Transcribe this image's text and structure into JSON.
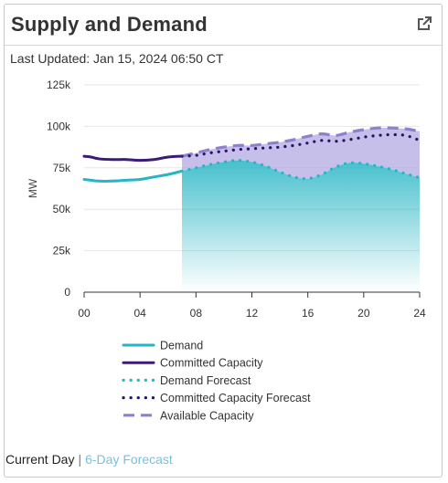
{
  "header": {
    "title": "Supply and Demand",
    "external_link_icon": "external-link-icon"
  },
  "last_updated": "Last Updated: Jan 15, 2024 06:50 CT",
  "footer": {
    "current_label": "Current Day",
    "separator": "|",
    "forecast_label": "6-Day Forecast"
  },
  "chart_data": {
    "type": "line",
    "ylabel": "MW",
    "xlabel": "",
    "xlim": [
      0,
      24
    ],
    "ylim": [
      0,
      125000
    ],
    "x_ticks": [
      "00",
      "04",
      "08",
      "12",
      "16",
      "20",
      "24"
    ],
    "y_ticks": [
      "0",
      "25k",
      "50k",
      "75k",
      "100k",
      "125k"
    ],
    "grid": true,
    "legend_position": "bottom",
    "series": [
      {
        "name": "Demand",
        "style": "solid",
        "color": "#26b5c4",
        "x": [
          0,
          0.5,
          1,
          2,
          3,
          4,
          5,
          6,
          7
        ],
        "y": [
          68000,
          67500,
          67000,
          67000,
          67500,
          68000,
          69500,
          71000,
          73000
        ]
      },
      {
        "name": "Committed Capacity",
        "style": "solid",
        "color": "#3d1a78",
        "x": [
          0,
          0.5,
          1,
          2,
          3,
          4,
          5,
          6,
          7
        ],
        "y": [
          82000,
          81500,
          80500,
          80000,
          80000,
          79500,
          80000,
          81500,
          82000
        ]
      },
      {
        "name": "Demand Forecast",
        "style": "dotted",
        "color": "#26b5c4",
        "x": [
          7,
          8,
          9,
          10,
          11,
          12,
          13,
          14,
          15,
          16,
          17,
          18,
          19,
          20,
          21,
          22,
          23,
          24
        ],
        "y": [
          73000,
          75000,
          77000,
          78500,
          79500,
          78500,
          76000,
          72500,
          69500,
          68500,
          71000,
          75500,
          78000,
          77500,
          76000,
          74000,
          71500,
          69000
        ]
      },
      {
        "name": "Committed Capacity Forecast",
        "style": "dotted",
        "color": "#2a1363",
        "x": [
          7,
          8,
          9,
          10,
          11,
          12,
          13,
          14,
          15,
          16,
          17,
          18,
          19,
          20,
          21,
          22,
          23,
          24
        ],
        "y": [
          82000,
          82500,
          84000,
          85000,
          86000,
          86500,
          87000,
          87500,
          88500,
          90000,
          91500,
          91000,
          92000,
          93500,
          94500,
          95000,
          94500,
          91500
        ]
      },
      {
        "name": "Available Capacity",
        "style": "dashed",
        "color": "#8f7fce",
        "x": [
          7,
          8,
          9,
          10,
          11,
          12,
          13,
          14,
          15,
          16,
          17,
          18,
          19,
          20,
          21,
          22,
          23,
          24
        ],
        "y": [
          82000,
          84000,
          86000,
          87500,
          88500,
          88500,
          89500,
          90500,
          92000,
          94000,
          95500,
          94500,
          96500,
          98000,
          99000,
          99000,
          98500,
          97000
        ]
      }
    ],
    "fills": [
      {
        "between": [
          "Demand Forecast",
          "baseline"
        ],
        "color": "#26b5c4"
      },
      {
        "between": [
          "Available Capacity",
          "Demand Forecast"
        ],
        "color": "#a99ede"
      }
    ]
  }
}
